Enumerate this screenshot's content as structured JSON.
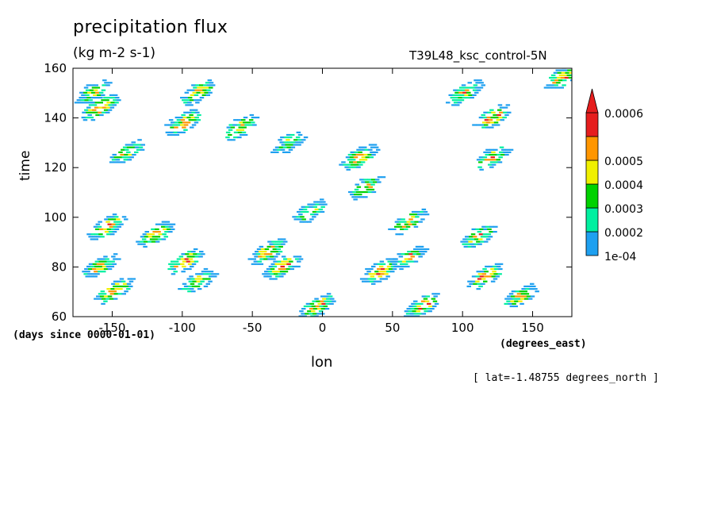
{
  "header": {
    "title": "precipitation flux",
    "units": "(kg m-2 s-1)",
    "run_name": "T39L48_ksc_control-5N"
  },
  "axes": {
    "xlabel": "lon",
    "ylabel": "time",
    "y_units": "(days since 0000-01-01)",
    "x_units": "(degrees_east)"
  },
  "footer": {
    "slice": "[ lat=-1.48755 degrees_north ]"
  },
  "chart_data": {
    "type": "heatmap",
    "title": "precipitation flux",
    "subtitle": "(kg m-2 s-1)",
    "xlabel": "lon",
    "ylabel": "time",
    "xlim": [
      -178,
      178
    ],
    "ylim": [
      60,
      160
    ],
    "x_ticks": [
      -150,
      -100,
      -50,
      0,
      50,
      100,
      150
    ],
    "y_ticks": [
      60,
      80,
      100,
      120,
      140,
      160
    ],
    "colorbar": {
      "levels": [
        0.0001,
        0.0002,
        0.0003,
        0.0004,
        0.0005,
        0.0006
      ],
      "tick_labels": [
        "1e-04",
        "0.0002",
        "0.0003",
        "0.0004",
        "0.0005",
        "0.0006"
      ],
      "colors": [
        "#1ea0f0",
        "#00f0a0",
        "#00d200",
        "#f0f000",
        "#ff9600",
        "#e61e1e"
      ],
      "extend": "max"
    },
    "features": [
      {
        "lon": -165,
        "time": 150,
        "intensity": 0.00045
      },
      {
        "lon": -160,
        "time": 144,
        "intensity": 0.0006
      },
      {
        "lon": -90,
        "time": 150,
        "intensity": 0.0005
      },
      {
        "lon": -100,
        "time": 138,
        "intensity": 0.0006
      },
      {
        "lon": -60,
        "time": 136,
        "intensity": 0.0005
      },
      {
        "lon": -25,
        "time": 130,
        "intensity": 0.0004
      },
      {
        "lon": -140,
        "time": 126,
        "intensity": 0.0005
      },
      {
        "lon": 25,
        "time": 124,
        "intensity": 0.0006
      },
      {
        "lon": 30,
        "time": 112,
        "intensity": 0.0005
      },
      {
        "lon": 120,
        "time": 124,
        "intensity": 0.0005
      },
      {
        "lon": 100,
        "time": 150,
        "intensity": 0.0005
      },
      {
        "lon": 120,
        "time": 140,
        "intensity": 0.0006
      },
      {
        "lon": 170,
        "time": 156,
        "intensity": 0.0006
      },
      {
        "lon": -155,
        "time": 96,
        "intensity": 0.0006
      },
      {
        "lon": -120,
        "time": 93,
        "intensity": 0.0006
      },
      {
        "lon": -40,
        "time": 86,
        "intensity": 0.0006
      },
      {
        "lon": -30,
        "time": 80,
        "intensity": 0.0006
      },
      {
        "lon": -100,
        "time": 82,
        "intensity": 0.0006
      },
      {
        "lon": -90,
        "time": 74,
        "intensity": 0.0005
      },
      {
        "lon": -160,
        "time": 80,
        "intensity": 0.0005
      },
      {
        "lon": -150,
        "time": 70,
        "intensity": 0.0006
      },
      {
        "lon": -5,
        "time": 64,
        "intensity": 0.0006
      },
      {
        "lon": 40,
        "time": 78,
        "intensity": 0.0006
      },
      {
        "lon": 70,
        "time": 64,
        "intensity": 0.0006
      },
      {
        "lon": 115,
        "time": 76,
        "intensity": 0.0006
      },
      {
        "lon": 140,
        "time": 68,
        "intensity": 0.0005
      },
      {
        "lon": 110,
        "time": 92,
        "intensity": 0.0005
      },
      {
        "lon": 60,
        "time": 98,
        "intensity": 0.0005
      },
      {
        "lon": -10,
        "time": 102,
        "intensity": 0.0004
      },
      {
        "lon": 60,
        "time": 84,
        "intensity": 0.0005
      }
    ]
  }
}
